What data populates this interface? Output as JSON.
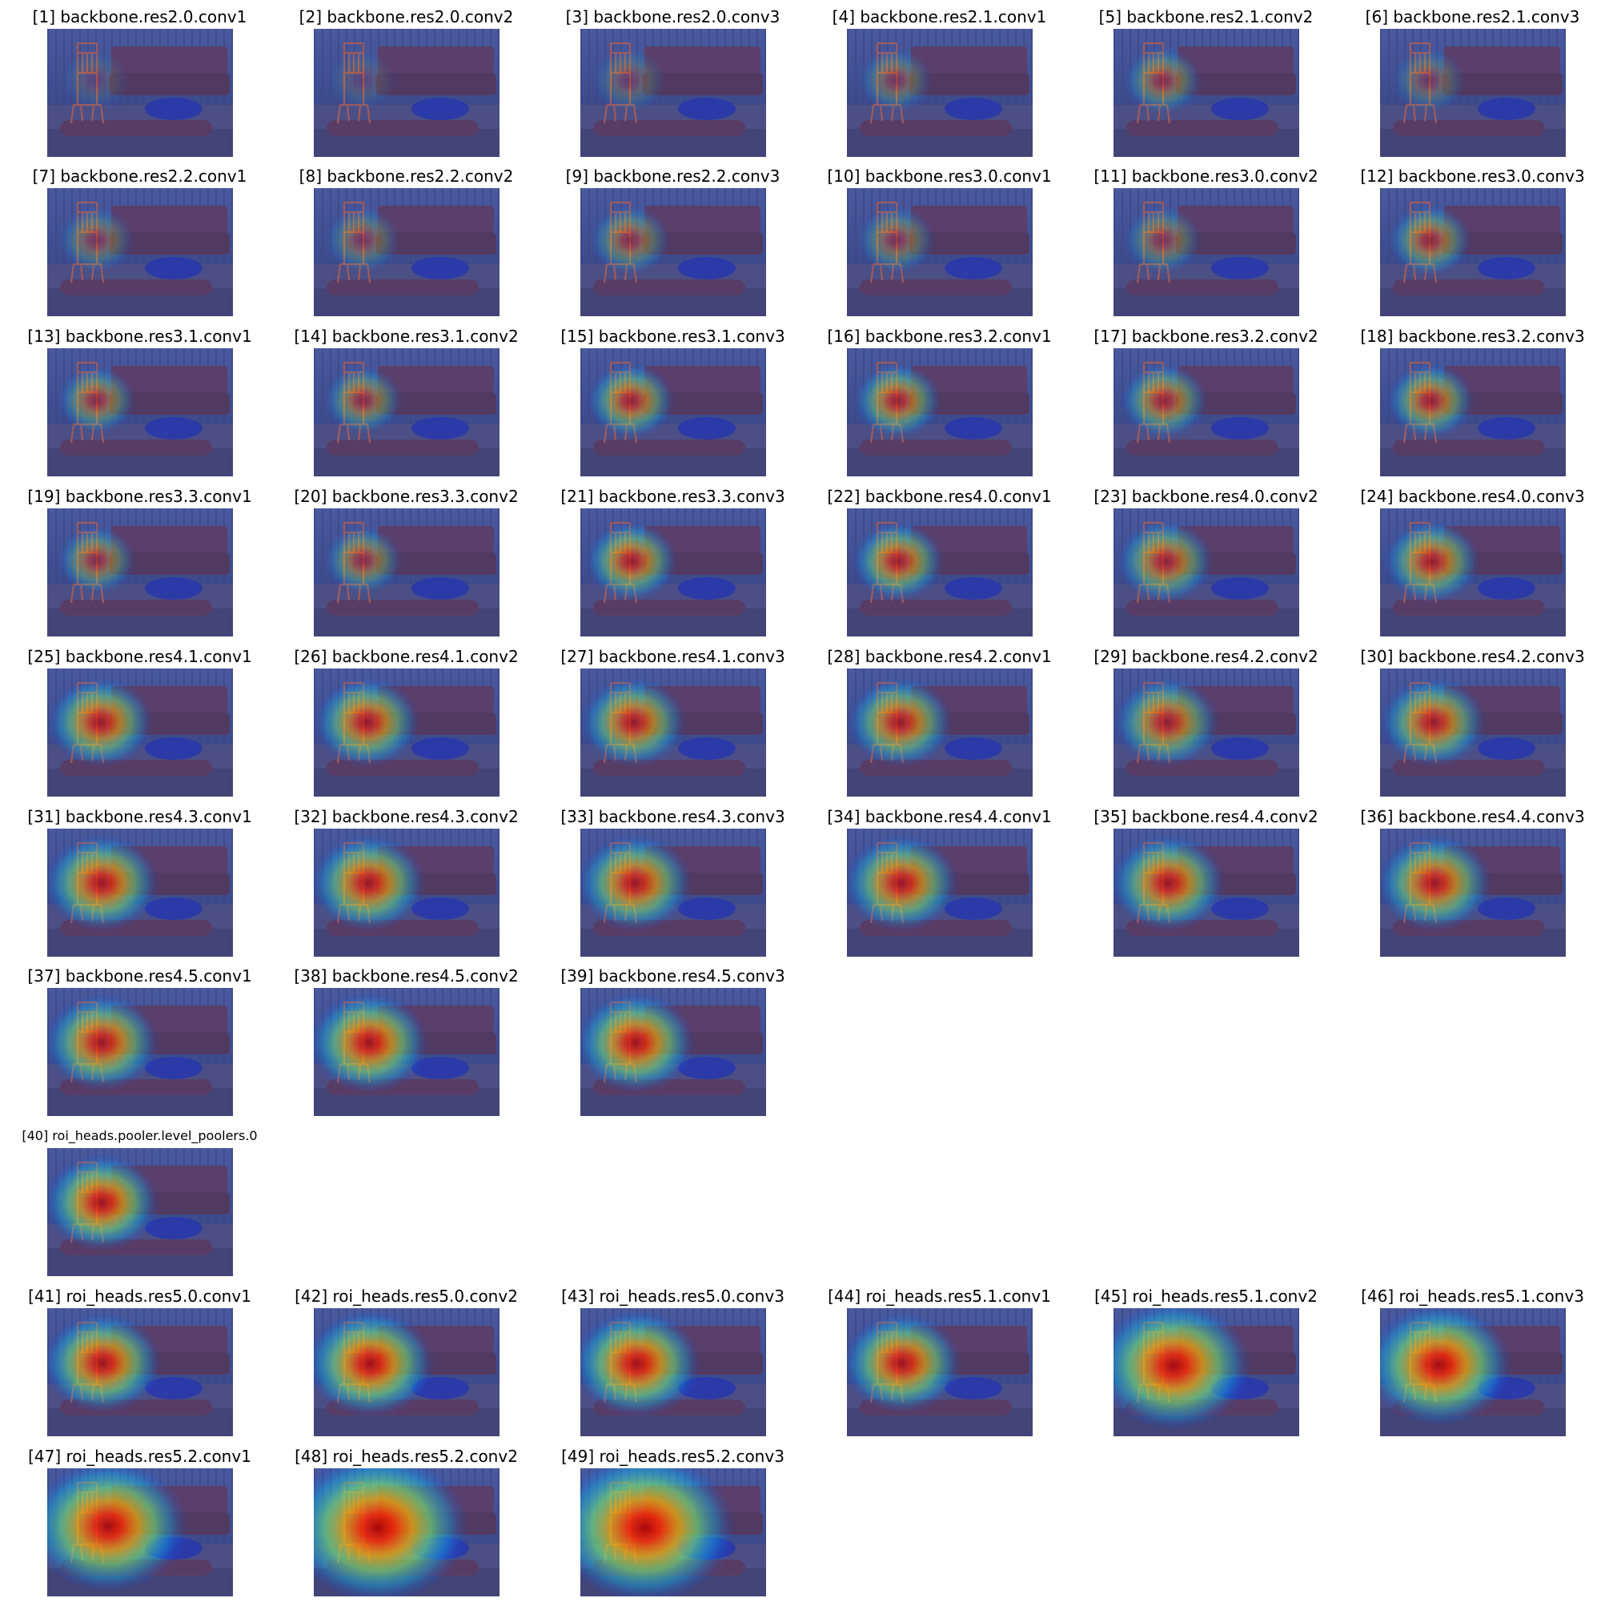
{
  "figure": {
    "panels": [
      {
        "index": 1,
        "title": "[1] backbone.res2.0.conv1",
        "heat": 0.15,
        "spread": 0.1
      },
      {
        "index": 2,
        "title": "[2] backbone.res2.0.conv2",
        "heat": 0.15,
        "spread": 0.1
      },
      {
        "index": 3,
        "title": "[3] backbone.res2.0.conv3",
        "heat": 0.25,
        "spread": 0.12
      },
      {
        "index": 4,
        "title": "[4] backbone.res2.1.conv1",
        "heat": 0.35,
        "spread": 0.12
      },
      {
        "index": 5,
        "title": "[5] backbone.res2.1.conv2",
        "heat": 0.45,
        "spread": 0.14
      },
      {
        "index": 6,
        "title": "[6] backbone.res2.1.conv3",
        "heat": 0.3,
        "spread": 0.12
      },
      {
        "index": 7,
        "title": "[7] backbone.res2.2.conv1",
        "heat": 0.35,
        "spread": 0.13
      },
      {
        "index": 8,
        "title": "[8] backbone.res2.2.conv2",
        "heat": 0.35,
        "spread": 0.13
      },
      {
        "index": 9,
        "title": "[9] backbone.res2.2.conv3",
        "heat": 0.45,
        "spread": 0.15
      },
      {
        "index": 10,
        "title": "[10] backbone.res3.0.conv1",
        "heat": 0.4,
        "spread": 0.14
      },
      {
        "index": 11,
        "title": "[11] backbone.res3.0.conv2",
        "heat": 0.4,
        "spread": 0.14
      },
      {
        "index": 12,
        "title": "[12] backbone.res3.0.conv3",
        "heat": 0.55,
        "spread": 0.16
      },
      {
        "index": 13,
        "title": "[13] backbone.res3.1.conv1",
        "heat": 0.5,
        "spread": 0.14
      },
      {
        "index": 14,
        "title": "[14] backbone.res3.1.conv2",
        "heat": 0.5,
        "spread": 0.14
      },
      {
        "index": 15,
        "title": "[15] backbone.res3.1.conv3",
        "heat": 0.65,
        "spread": 0.18
      },
      {
        "index": 16,
        "title": "[16] backbone.res3.2.conv1",
        "heat": 0.65,
        "spread": 0.18
      },
      {
        "index": 17,
        "title": "[17] backbone.res3.2.conv2",
        "heat": 0.6,
        "spread": 0.18
      },
      {
        "index": 18,
        "title": "[18] backbone.res3.2.conv3",
        "heat": 0.65,
        "spread": 0.18
      },
      {
        "index": 19,
        "title": "[19] backbone.res3.3.conv1",
        "heat": 0.5,
        "spread": 0.14
      },
      {
        "index": 20,
        "title": "[20] backbone.res3.3.conv2",
        "heat": 0.5,
        "spread": 0.14
      },
      {
        "index": 21,
        "title": "[21] backbone.res3.3.conv3",
        "heat": 0.7,
        "spread": 0.2
      },
      {
        "index": 22,
        "title": "[22] backbone.res4.0.conv1",
        "heat": 0.7,
        "spread": 0.2
      },
      {
        "index": 23,
        "title": "[23] backbone.res4.0.conv2",
        "heat": 0.65,
        "spread": 0.22
      },
      {
        "index": 24,
        "title": "[24] backbone.res4.0.conv3",
        "heat": 0.7,
        "spread": 0.22
      },
      {
        "index": 25,
        "title": "[25] backbone.res4.1.conv1",
        "heat": 0.75,
        "spread": 0.26
      },
      {
        "index": 26,
        "title": "[26] backbone.res4.1.conv2",
        "heat": 0.75,
        "spread": 0.26
      },
      {
        "index": 27,
        "title": "[27] backbone.res4.1.conv3",
        "heat": 0.75,
        "spread": 0.26
      },
      {
        "index": 28,
        "title": "[28] backbone.res4.2.conv1",
        "heat": 0.75,
        "spread": 0.26
      },
      {
        "index": 29,
        "title": "[29] backbone.res4.2.conv2",
        "heat": 0.7,
        "spread": 0.26
      },
      {
        "index": 30,
        "title": "[30] backbone.res4.2.conv3",
        "heat": 0.75,
        "spread": 0.26
      },
      {
        "index": 31,
        "title": "[31] backbone.res4.3.conv1",
        "heat": 0.8,
        "spread": 0.3
      },
      {
        "index": 32,
        "title": "[32] backbone.res4.3.conv2",
        "heat": 0.8,
        "spread": 0.3
      },
      {
        "index": 33,
        "title": "[33] backbone.res4.3.conv3",
        "heat": 0.8,
        "spread": 0.3
      },
      {
        "index": 34,
        "title": "[34] backbone.res4.4.conv1",
        "heat": 0.8,
        "spread": 0.3
      },
      {
        "index": 35,
        "title": "[35] backbone.res4.4.conv2",
        "heat": 0.8,
        "spread": 0.3
      },
      {
        "index": 36,
        "title": "[36] backbone.res4.4.conv3",
        "heat": 0.8,
        "spread": 0.3
      },
      {
        "index": 37,
        "title": "[37] backbone.res4.5.conv1",
        "heat": 0.8,
        "spread": 0.3
      },
      {
        "index": 38,
        "title": "[38] backbone.res4.5.conv2",
        "heat": 0.85,
        "spread": 0.32
      },
      {
        "index": 39,
        "title": "[39] backbone.res4.5.conv3",
        "heat": 0.85,
        "spread": 0.32
      },
      {
        "index": 40,
        "title": "[40] roi_heads.pooler.level_poolers.0",
        "heat": 0.85,
        "spread": 0.3,
        "small_title": true
      },
      {
        "index": 41,
        "title": "[41] roi_heads.res5.0.conv1",
        "heat": 0.85,
        "spread": 0.32
      },
      {
        "index": 42,
        "title": "[42] roi_heads.res5.0.conv2",
        "heat": 0.9,
        "spread": 0.36
      },
      {
        "index": 43,
        "title": "[43] roi_heads.res5.0.conv3",
        "heat": 0.9,
        "spread": 0.36
      },
      {
        "index": 44,
        "title": "[44] roi_heads.res5.1.conv1",
        "heat": 0.85,
        "spread": 0.32
      },
      {
        "index": 45,
        "title": "[45] roi_heads.res5.1.conv2",
        "heat": 0.95,
        "spread": 0.48
      },
      {
        "index": 46,
        "title": "[46] roi_heads.res5.1.conv3",
        "heat": 0.95,
        "spread": 0.44
      },
      {
        "index": 47,
        "title": "[47] roi_heads.res5.2.conv1",
        "heat": 0.95,
        "spread": 0.5
      },
      {
        "index": 48,
        "title": "[48] roi_heads.res5.2.conv2",
        "heat": 1.0,
        "spread": 0.6
      },
      {
        "index": 49,
        "title": "[49] roi_heads.res5.2.conv3",
        "heat": 1.0,
        "spread": 0.6
      }
    ]
  }
}
